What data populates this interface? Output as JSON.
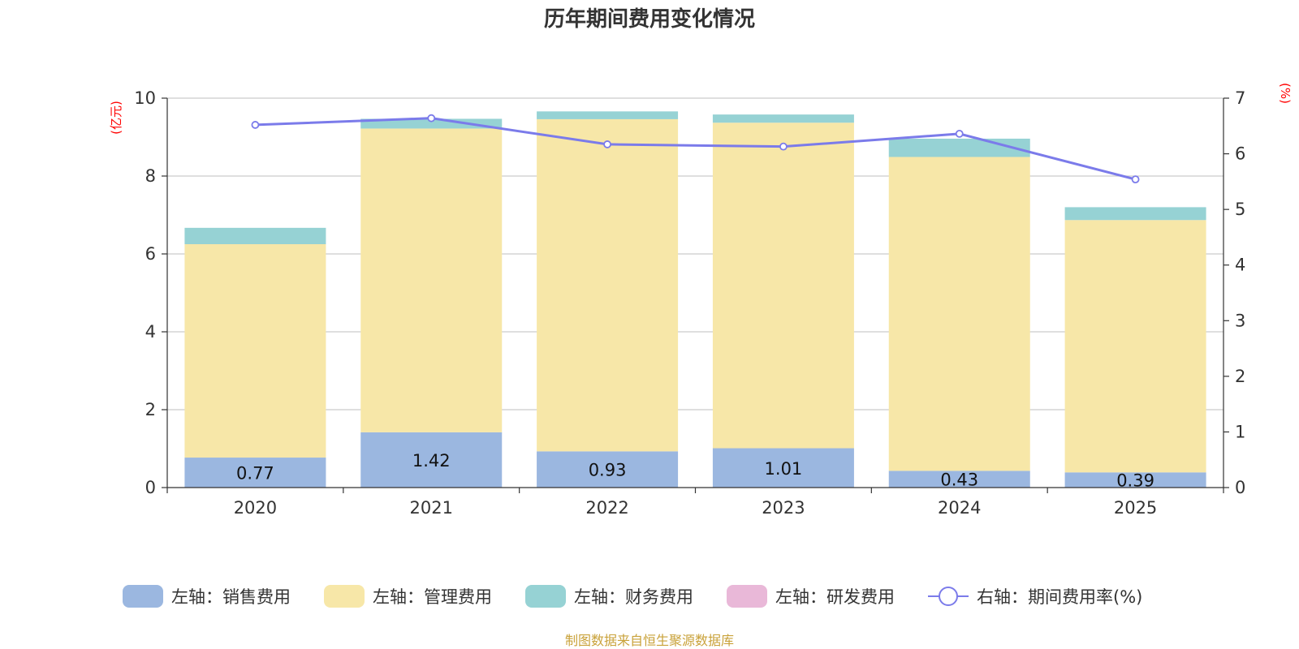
{
  "chart_data": {
    "type": "bar",
    "title": "历年期间费用变化情况",
    "categories": [
      "2020",
      "2021",
      "2022",
      "2023",
      "2024",
      "2025"
    ],
    "left_axis": {
      "unit": "(亿元)",
      "ylim": [
        0,
        10
      ],
      "ticks": [
        "0",
        "2",
        "4",
        "6",
        "8",
        "10"
      ]
    },
    "right_axis": {
      "unit": "(%)",
      "ylim": [
        0,
        7
      ],
      "ticks": [
        "0",
        "1",
        "2",
        "3",
        "4",
        "5",
        "6",
        "7"
      ]
    },
    "series": [
      {
        "name": "左轴：销售费用",
        "kind": "bar",
        "axis": "left",
        "color": "#9bb7e0",
        "values": [
          0.77,
          1.42,
          0.93,
          1.01,
          0.43,
          0.39
        ],
        "labels": [
          "0.77",
          "1.42",
          "0.93",
          "1.01",
          "0.43",
          "0.39"
        ]
      },
      {
        "name": "左轴：管理费用",
        "kind": "bar",
        "axis": "left",
        "color": "#f7e7a8",
        "values": [
          5.48,
          7.8,
          8.53,
          8.36,
          8.06,
          6.48
        ]
      },
      {
        "name": "左轴：财务费用",
        "kind": "bar",
        "axis": "left",
        "color": "#96d2d4",
        "values": [
          0.42,
          0.25,
          0.2,
          0.21,
          0.47,
          0.33
        ]
      },
      {
        "name": "左轴：研发费用",
        "kind": "bar",
        "axis": "left",
        "color": "#e9b8d8",
        "values": [
          0,
          0,
          0,
          0,
          0,
          0
        ]
      },
      {
        "name": "右轴：期间费用率(%)",
        "kind": "line",
        "axis": "right",
        "color": "#7b7bea",
        "values": [
          6.52,
          6.64,
          6.17,
          6.13,
          6.36,
          5.54
        ]
      }
    ],
    "grid": true,
    "legend_position": "bottom"
  },
  "source": {
    "text": "制图数据来自恒生聚源数据库",
    "color": "#c9a23a"
  }
}
